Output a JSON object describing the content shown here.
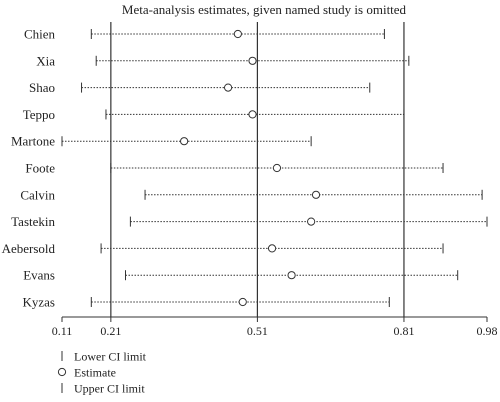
{
  "chart_data": {
    "type": "scatter",
    "title": "Meta-analysis estimates, given named study is omitted",
    "xlim": [
      0.11,
      0.98
    ],
    "xticks": [
      0.11,
      0.21,
      0.51,
      0.81,
      0.98
    ],
    "reference_lines": [
      0.21,
      0.51,
      0.81
    ],
    "studies": [
      {
        "name": "Chien",
        "lower": 0.17,
        "estimate": 0.47,
        "upper": 0.77
      },
      {
        "name": "Xia",
        "lower": 0.18,
        "estimate": 0.5,
        "upper": 0.82
      },
      {
        "name": "Shao",
        "lower": 0.15,
        "estimate": 0.45,
        "upper": 0.74
      },
      {
        "name": "Teppo",
        "lower": 0.2,
        "estimate": 0.5,
        "upper": 0.81
      },
      {
        "name": "Martone",
        "lower": 0.11,
        "estimate": 0.36,
        "upper": 0.62
      },
      {
        "name": "Foote",
        "lower": 0.21,
        "estimate": 0.55,
        "upper": 0.89
      },
      {
        "name": "Calvin",
        "lower": 0.28,
        "estimate": 0.63,
        "upper": 0.97
      },
      {
        "name": "Tastekin",
        "lower": 0.25,
        "estimate": 0.62,
        "upper": 0.98
      },
      {
        "name": "Aebersold",
        "lower": 0.19,
        "estimate": 0.54,
        "upper": 0.89
      },
      {
        "name": "Evans",
        "lower": 0.24,
        "estimate": 0.58,
        "upper": 0.92
      },
      {
        "name": "Kyzas",
        "lower": 0.17,
        "estimate": 0.48,
        "upper": 0.78
      }
    ],
    "legend": [
      {
        "symbol": "|",
        "label": "Lower CI limit"
      },
      {
        "symbol": "o",
        "label": "Estimate"
      },
      {
        "symbol": "|",
        "label": "Upper CI limit"
      }
    ]
  }
}
